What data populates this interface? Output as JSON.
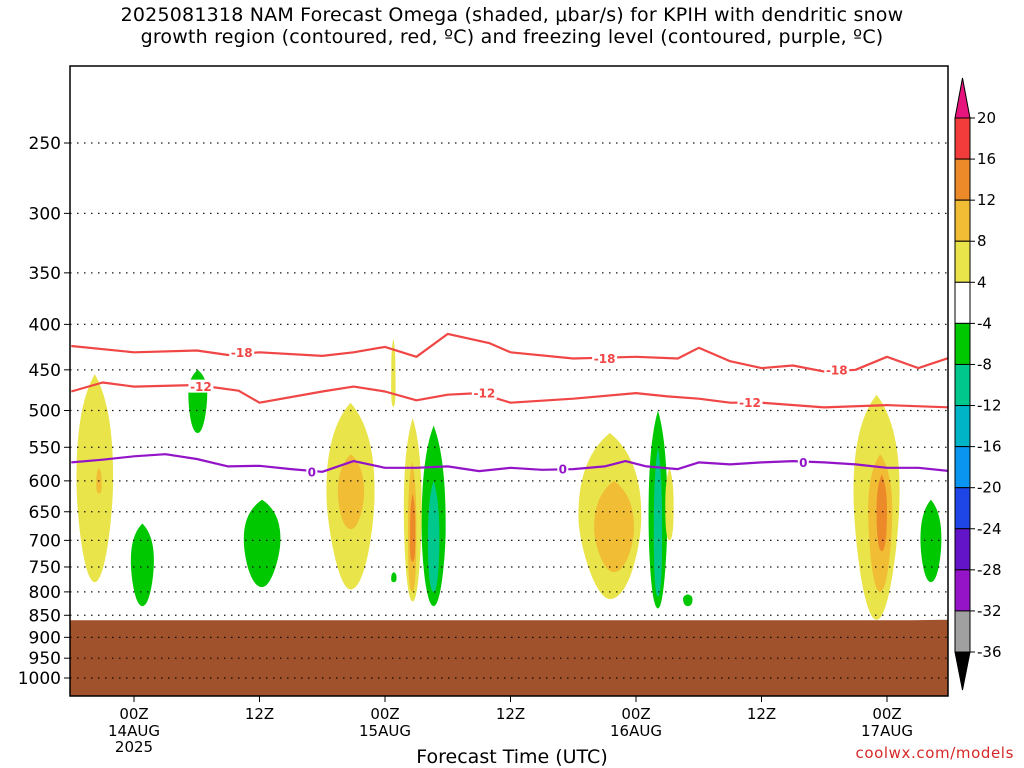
{
  "title": {
    "line1": "2025081318 NAM Forecast Omega (shaded, μbar/s) for KPIH with dendritic snow",
    "line2": "growth region (contoured, red, ºC) and freezing level (contoured, purple, ºC)"
  },
  "credit": "coolwx.com/models",
  "chart_data": {
    "type": "time-height",
    "title": "2025081318 NAM Forecast Omega (shaded, μbar/s) for KPIH with dendritic snow growth region (contoured, red, ºC) and freezing level (contoured, purple, ºC)",
    "xlabel": "Forecast Time (UTC)",
    "ylabel": "",
    "x_range_hours": [
      -6,
      78
    ],
    "y_range_hpa": [
      1050,
      200
    ],
    "y_scale": "log",
    "grid": "dotted",
    "y_ticks": [
      250,
      300,
      350,
      400,
      450,
      500,
      550,
      600,
      650,
      700,
      750,
      800,
      850,
      900,
      950,
      1000
    ],
    "x_ticks": [
      {
        "hour": 0,
        "label": "00Z",
        "sub1": "14AUG",
        "sub2": "2025"
      },
      {
        "hour": 12,
        "label": "12Z",
        "sub1": "",
        "sub2": ""
      },
      {
        "hour": 24,
        "label": "00Z",
        "sub1": "15AUG",
        "sub2": ""
      },
      {
        "hour": 36,
        "label": "12Z",
        "sub1": "",
        "sub2": ""
      },
      {
        "hour": 48,
        "label": "00Z",
        "sub1": "16AUG",
        "sub2": ""
      },
      {
        "hour": 60,
        "label": "12Z",
        "sub1": "",
        "sub2": ""
      },
      {
        "hour": 72,
        "label": "00Z",
        "sub1": "17AUG",
        "sub2": ""
      }
    ],
    "surface": {
      "hpa": 860,
      "color": "#a0522d"
    },
    "colorbar": {
      "levels": [
        20,
        16,
        12,
        8,
        4,
        -4,
        -8,
        -12,
        -16,
        -20,
        -24,
        -28,
        -32,
        -36
      ],
      "colors": [
        "#f23c3c",
        "#ec8a2a",
        "#f0bd34",
        "#e8e44a",
        "#ffffff",
        "#00c800",
        "#00c88c",
        "#00b4c8",
        "#0a96f0",
        "#1e46e6",
        "#6414c8",
        "#9614c8",
        "#a0a0a0"
      ],
      "top_color": "#e6147d",
      "bottom_color": "#000000"
    },
    "contours": [
      {
        "name": "-18",
        "color": "#f04646",
        "points": [
          [
            -6,
            423
          ],
          [
            0,
            430
          ],
          [
            6,
            428
          ],
          [
            9,
            433
          ],
          [
            12,
            430
          ],
          [
            18,
            434
          ],
          [
            21,
            430
          ],
          [
            24,
            424
          ],
          [
            27,
            435
          ],
          [
            30,
            410
          ],
          [
            34,
            420
          ],
          [
            36,
            430
          ],
          [
            42,
            437
          ],
          [
            48,
            435
          ],
          [
            52,
            437
          ],
          [
            54,
            425
          ],
          [
            57,
            440
          ],
          [
            60,
            448
          ],
          [
            63,
            445
          ],
          [
            66,
            452
          ],
          [
            69,
            450
          ],
          [
            72,
            435
          ],
          [
            75,
            448
          ],
          [
            78,
            436
          ]
        ]
      },
      {
        "name": "-12",
        "color": "#f04646",
        "points": [
          [
            -6,
            476
          ],
          [
            -3,
            465
          ],
          [
            0,
            470
          ],
          [
            6,
            468
          ],
          [
            10,
            475
          ],
          [
            12,
            490
          ],
          [
            18,
            476
          ],
          [
            21,
            470
          ],
          [
            24,
            476
          ],
          [
            27,
            487
          ],
          [
            30,
            480
          ],
          [
            33,
            478
          ],
          [
            36,
            490
          ],
          [
            42,
            485
          ],
          [
            48,
            478
          ],
          [
            51,
            482
          ],
          [
            54,
            485
          ],
          [
            57,
            490
          ],
          [
            60,
            490
          ],
          [
            66,
            496
          ],
          [
            72,
            493
          ],
          [
            78,
            496
          ]
        ]
      },
      {
        "name": "0",
        "color": "#9314c8",
        "points": [
          [
            -6,
            572
          ],
          [
            -3,
            568
          ],
          [
            0,
            563
          ],
          [
            3,
            560
          ],
          [
            6,
            567
          ],
          [
            9,
            578
          ],
          [
            12,
            577
          ],
          [
            15,
            582
          ],
          [
            18,
            586
          ],
          [
            21,
            570
          ],
          [
            24,
            580
          ],
          [
            27,
            580
          ],
          [
            30,
            578
          ],
          [
            33,
            585
          ],
          [
            36,
            580
          ],
          [
            39,
            583
          ],
          [
            42,
            582
          ],
          [
            45,
            578
          ],
          [
            47,
            570
          ],
          [
            49,
            578
          ],
          [
            52,
            582
          ],
          [
            54,
            572
          ],
          [
            57,
            575
          ],
          [
            60,
            572
          ],
          [
            63,
            570
          ],
          [
            66,
            572
          ],
          [
            69,
            575
          ],
          [
            72,
            580
          ],
          [
            75,
            580
          ],
          [
            78,
            585
          ]
        ]
      }
    ],
    "contour_labels": [
      {
        "text": "-18",
        "hour": 10.3,
        "hpa": 430
      },
      {
        "text": "-12",
        "hour": 6.4,
        "hpa": 470
      },
      {
        "text": "-18",
        "hour": 45.0,
        "hpa": 437
      },
      {
        "text": "-12",
        "hour": 33.5,
        "hpa": 478
      },
      {
        "text": "-18",
        "hour": 67.2,
        "hpa": 450
      },
      {
        "text": "-12",
        "hour": 58.9,
        "hpa": 490
      },
      {
        "text": "0",
        "hour": 17.0,
        "hpa": 586
      },
      {
        "text": "0",
        "hour": 41.0,
        "hpa": 582
      },
      {
        "text": "0",
        "hour": 64.0,
        "hpa": 572
      }
    ],
    "regions": [
      {
        "level": "4 to 8",
        "color": "#e8e44a",
        "hour": [
          -5.5,
          -2.0
        ],
        "hpa": [
          455,
          780
        ],
        "peak": [
          -3.8,
          600
        ]
      },
      {
        "level": "8 to 12",
        "color": "#f0bd34",
        "hour": [
          -3.6,
          -3.1
        ],
        "hpa": [
          580,
          620
        ],
        "peak": [
          -3.3,
          600
        ]
      },
      {
        "level": "-4 to -8",
        "color": "#00c800",
        "hour": [
          -0.3,
          1.9
        ],
        "hpa": [
          670,
          830
        ],
        "peak": [
          0.8,
          740
        ]
      },
      {
        "level": "-4 to -8",
        "color": "#00c800",
        "hour": [
          5.2,
          7.0
        ],
        "hpa": [
          450,
          530
        ],
        "peak": [
          6.0,
          480
        ]
      },
      {
        "level": "-4 to -8",
        "color": "#00c800",
        "hour": [
          10.5,
          14.0
        ],
        "hpa": [
          630,
          790
        ],
        "peak": [
          12.0,
          700
        ]
      },
      {
        "level": "4 to 8",
        "color": "#e8e44a",
        "hour": [
          18.4,
          23.0
        ],
        "hpa": [
          490,
          795
        ],
        "peak": [
          21.0,
          620
        ]
      },
      {
        "level": "8 to 12",
        "color": "#f0bd34",
        "hour": [
          19.5,
          22.0
        ],
        "hpa": [
          560,
          680
        ],
        "peak": [
          20.6,
          620
        ]
      },
      {
        "level": "4 to 8",
        "color": "#e8e44a",
        "hour": [
          25.8,
          27.5
        ],
        "hpa": [
          510,
          820
        ],
        "peak": [
          26.6,
          650
        ]
      },
      {
        "level": "8 to 12",
        "color": "#f0bd34",
        "hour": [
          26.2,
          27.0
        ],
        "hpa": [
          570,
          800
        ],
        "peak": [
          26.6,
          680
        ]
      },
      {
        "level": "12 to 16",
        "color": "#ec8a2a",
        "hour": [
          26.4,
          26.9
        ],
        "hpa": [
          620,
          740
        ],
        "peak": [
          26.6,
          680
        ]
      },
      {
        "level": "4 to 8",
        "color": "#e8e44a",
        "hour": [
          24.6,
          25.0
        ],
        "hpa": [
          415,
          495
        ],
        "peak": [
          24.8,
          450
        ]
      },
      {
        "level": "-4 to -8",
        "color": "#00c800",
        "hour": [
          27.5,
          29.8
        ],
        "hpa": [
          520,
          830
        ],
        "peak": [
          28.6,
          680
        ]
      },
      {
        "level": "-8 to -12",
        "color": "#00c88c",
        "hour": [
          28.1,
          29.2
        ],
        "hpa": [
          600,
          800
        ],
        "peak": [
          28.6,
          700
        ]
      },
      {
        "level": "-4 to -8",
        "color": "#00c800",
        "hour": [
          24.6,
          25.1
        ],
        "hpa": [
          760,
          780
        ],
        "peak": [
          24.8,
          770
        ]
      },
      {
        "level": "4 to 8",
        "color": "#e8e44a",
        "hour": [
          42.5,
          48.5
        ],
        "hpa": [
          530,
          815
        ],
        "peak": [
          46.0,
          660
        ]
      },
      {
        "level": "8 to 12",
        "color": "#f0bd34",
        "hour": [
          44.0,
          47.8
        ],
        "hpa": [
          600,
          760
        ],
        "peak": [
          46.0,
          680
        ]
      },
      {
        "level": "-4 to -8",
        "color": "#00c800",
        "hour": [
          49.2,
          51.0
        ],
        "hpa": [
          500,
          835
        ],
        "peak": [
          50.0,
          660
        ]
      },
      {
        "level": "-8 to -12",
        "color": "#00c88c",
        "hour": [
          49.7,
          50.5
        ],
        "hpa": [
          550,
          810
        ],
        "peak": [
          50.1,
          680
        ]
      },
      {
        "level": "4 to 8",
        "color": "#e8e44a",
        "hour": [
          50.8,
          51.6
        ],
        "hpa": [
          580,
          700
        ],
        "peak": [
          51.2,
          640
        ]
      },
      {
        "level": "-4 to -8",
        "color": "#00c800",
        "hour": [
          52.5,
          53.4
        ],
        "hpa": [
          805,
          830
        ],
        "peak": [
          53.0,
          815
        ]
      },
      {
        "level": "4 to 8",
        "color": "#e8e44a",
        "hour": [
          68.8,
          73.2
        ],
        "hpa": [
          480,
          860
        ],
        "peak": [
          71.0,
          620
        ]
      },
      {
        "level": "8 to 12",
        "color": "#f0bd34",
        "hour": [
          70.2,
          72.5
        ],
        "hpa": [
          560,
          800
        ],
        "peak": [
          71.3,
          650
        ]
      },
      {
        "level": "12 to 16",
        "color": "#ec8a2a",
        "hour": [
          71.0,
          72.0
        ],
        "hpa": [
          590,
          720
        ],
        "peak": [
          71.5,
          650
        ]
      },
      {
        "level": "-4 to -8",
        "color": "#00c800",
        "hour": [
          75.2,
          77.2
        ],
        "hpa": [
          630,
          780
        ],
        "peak": [
          76.2,
          700
        ]
      }
    ]
  }
}
